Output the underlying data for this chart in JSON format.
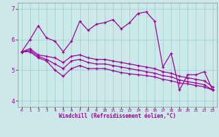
{
  "xlabel": "Windchill (Refroidissement éolien,°C)",
  "xlim": [
    -0.5,
    23.5
  ],
  "ylim": [
    3.8,
    7.2
  ],
  "yticks": [
    4,
    5,
    6,
    7
  ],
  "xticks": [
    0,
    1,
    2,
    3,
    4,
    5,
    6,
    7,
    8,
    9,
    10,
    11,
    12,
    13,
    14,
    15,
    16,
    17,
    18,
    19,
    20,
    21,
    22,
    23
  ],
  "bg_color": "#cce8e8",
  "line_color": "#990099",
  "grid_color": "#99cccc",
  "lines": [
    [
      5.6,
      6.0,
      6.45,
      6.05,
      5.95,
      5.6,
      5.95,
      6.6,
      6.3,
      6.5,
      6.55,
      6.65,
      6.35,
      6.55,
      6.85,
      6.9,
      6.6,
      5.1,
      5.55,
      4.35,
      4.85,
      4.85,
      4.95,
      4.35
    ],
    [
      5.6,
      5.7,
      5.5,
      5.45,
      5.4,
      5.25,
      5.45,
      5.5,
      5.4,
      5.35,
      5.35,
      5.3,
      5.25,
      5.2,
      5.15,
      5.1,
      5.05,
      4.95,
      4.9,
      4.8,
      4.75,
      4.7,
      4.65,
      4.45
    ],
    [
      5.6,
      5.65,
      5.45,
      5.35,
      5.2,
      5.05,
      5.3,
      5.35,
      5.25,
      5.2,
      5.2,
      5.15,
      5.1,
      5.05,
      5.0,
      4.95,
      4.9,
      4.82,
      4.78,
      4.68,
      4.62,
      4.58,
      4.52,
      4.35
    ],
    [
      5.6,
      5.6,
      5.4,
      5.3,
      5.0,
      4.8,
      5.05,
      5.15,
      5.05,
      5.05,
      5.05,
      4.98,
      4.92,
      4.88,
      4.85,
      4.82,
      4.78,
      4.7,
      4.65,
      4.58,
      4.55,
      4.5,
      4.45,
      4.35
    ]
  ]
}
